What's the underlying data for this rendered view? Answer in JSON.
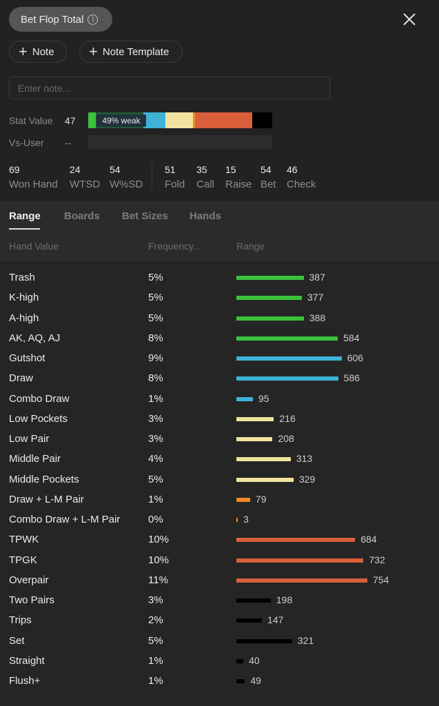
{
  "header": {
    "title": "Bet Flop Total",
    "info_icon": "info-circle-icon",
    "close_icon": "close-x-icon"
  },
  "actions": {
    "note_label": "Note",
    "note_template_label": "Note Template",
    "note_placeholder": "Enter note..."
  },
  "stat": {
    "stat_value_label": "Stat Value",
    "stat_value": "47",
    "badge": "49% weak",
    "bar_segments": [
      {
        "color": "#3cc13c",
        "fraction": 0.04
      },
      {
        "color": "#24583a",
        "fraction": 0.26
      },
      {
        "color": "#3fb2d8",
        "fraction": 0.12
      },
      {
        "color": "#f0e4a0",
        "fraction": 0.15
      },
      {
        "color": "#f08a24",
        "fraction": 0.01
      },
      {
        "color": "#d95f3b",
        "fraction": 0.31
      },
      {
        "color": "#000000",
        "fraction": 0.11
      }
    ],
    "vs_user_label": "Vs-User",
    "vs_user_value": "--"
  },
  "metrics": [
    {
      "value": "69",
      "label": "Won Hand"
    },
    {
      "value": "24",
      "label": "WTSD"
    },
    {
      "value": "54",
      "label": "W%SD"
    },
    {
      "value": "51",
      "label": "Fold"
    },
    {
      "value": "35",
      "label": "Call"
    },
    {
      "value": "15",
      "label": "Raise"
    },
    {
      "value": "54",
      "label": "Bet"
    },
    {
      "value": "46",
      "label": "Check"
    }
  ],
  "tabs": [
    "Range",
    "Boards",
    "Bet Sizes",
    "Hands"
  ],
  "active_tab": "Range",
  "table_headers": {
    "hand_value": "Hand Value",
    "frequency": "Frequency...",
    "range": "Range"
  },
  "colors": {
    "green": "#3cc13c",
    "blue": "#3fb2d8",
    "yellow": "#f0e4a0",
    "orange": "#f08a24",
    "red": "#d95f3b",
    "black": "#000000"
  },
  "rows": [
    {
      "hand": "Trash",
      "freq": "5%",
      "count": 387,
      "color": "#3cc13c"
    },
    {
      "hand": "K-high",
      "freq": "5%",
      "count": 377,
      "color": "#3cc13c"
    },
    {
      "hand": "A-high",
      "freq": "5%",
      "count": 388,
      "color": "#3cc13c"
    },
    {
      "hand": "AK, AQ, AJ",
      "freq": "8%",
      "count": 584,
      "color": "#3cc13c"
    },
    {
      "hand": "Gutshot",
      "freq": "9%",
      "count": 606,
      "color": "#3fb2d8"
    },
    {
      "hand": "Draw",
      "freq": "8%",
      "count": 586,
      "color": "#3fb2d8"
    },
    {
      "hand": "Combo Draw",
      "freq": "1%",
      "count": 95,
      "color": "#3fb2d8"
    },
    {
      "hand": "Low Pockets",
      "freq": "3%",
      "count": 216,
      "color": "#f0e4a0"
    },
    {
      "hand": "Low Pair",
      "freq": "3%",
      "count": 208,
      "color": "#f0e4a0"
    },
    {
      "hand": "Middle Pair",
      "freq": "4%",
      "count": 313,
      "color": "#f0e4a0"
    },
    {
      "hand": "Middle Pockets",
      "freq": "5%",
      "count": 329,
      "color": "#f0e4a0"
    },
    {
      "hand": "Draw + L-M Pair",
      "freq": "1%",
      "count": 79,
      "color": "#f08a24"
    },
    {
      "hand": "Combo Draw + L-M Pair",
      "freq": "0%",
      "count": 3,
      "color": "#f08a24"
    },
    {
      "hand": "TPWK",
      "freq": "10%",
      "count": 684,
      "color": "#d95f3b"
    },
    {
      "hand": "TPGK",
      "freq": "10%",
      "count": 732,
      "color": "#d95f3b"
    },
    {
      "hand": "Overpair",
      "freq": "11%",
      "count": 754,
      "color": "#d95f3b"
    },
    {
      "hand": "Two Pairs",
      "freq": "3%",
      "count": 198,
      "color": "#000000"
    },
    {
      "hand": "Trips",
      "freq": "2%",
      "count": 147,
      "color": "#000000"
    },
    {
      "hand": "Set",
      "freq": "5%",
      "count": 321,
      "color": "#000000"
    },
    {
      "hand": "Straight",
      "freq": "1%",
      "count": 40,
      "color": "#000000"
    },
    {
      "hand": "Flush+",
      "freq": "1%",
      "count": 49,
      "color": "#000000"
    }
  ]
}
